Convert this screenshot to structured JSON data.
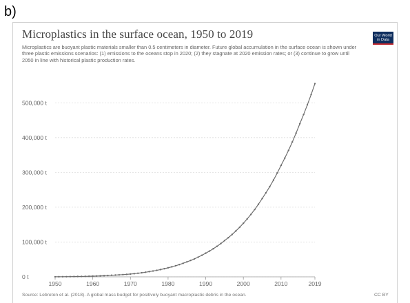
{
  "panel_label": "b)",
  "logo": {
    "line1": "Our World",
    "line2": "in Data"
  },
  "colors": {
    "line": "#6d6d6d",
    "grid": "#dddddd",
    "logo_bg": "#0f2e5e",
    "logo_accent": "#c1272d"
  },
  "chart_data": {
    "type": "line",
    "title": "Microplastics in the surface ocean, 1950 to 2019",
    "subtitle": "Microplastics are buoyant plastic materials smaller than 0.5 centimeters in diameter. Future global accumulation in the surface ocean is shown under three plastic emissions scenarios: (1) emissions to the oceans stop in 2020; (2) they stagnate at 2020 emission rates; or (3) continue to grow until 2050 in line with historical plastic production rates.",
    "xlabel": "",
    "ylabel": "",
    "xlim": [
      1950,
      2019
    ],
    "ylim": [
      0,
      550000
    ],
    "x_ticks": [
      1950,
      1960,
      1970,
      1980,
      1990,
      2000,
      2010,
      2019
    ],
    "x_tick_labels": [
      "1950",
      "1960",
      "1970",
      "1980",
      "1990",
      "2000",
      "2010",
      "2019"
    ],
    "y_ticks": [
      0,
      100000,
      200000,
      300000,
      400000,
      500000
    ],
    "y_tick_labels": [
      "0 t",
      "100,000 t",
      "200,000 t",
      "300,000 t",
      "400,000 t",
      "500,000 t"
    ],
    "grid": true,
    "series": [
      {
        "x": [
          1950,
          1955,
          1960,
          1965,
          1970,
          1975,
          1980,
          1985,
          1990,
          1995,
          2000,
          2005,
          2010,
          2015,
          2019
        ],
        "values": [
          200,
          800,
          2000,
          4500,
          8000,
          15000,
          26000,
          43000,
          68000,
          104000,
          154000,
          225000,
          320000,
          440000,
          555000
        ]
      }
    ],
    "source": "Source: Lebreton et al. (2018). A global mass budget for positively buoyant macroplastic debris in the ocean.",
    "license": "CC BY"
  }
}
